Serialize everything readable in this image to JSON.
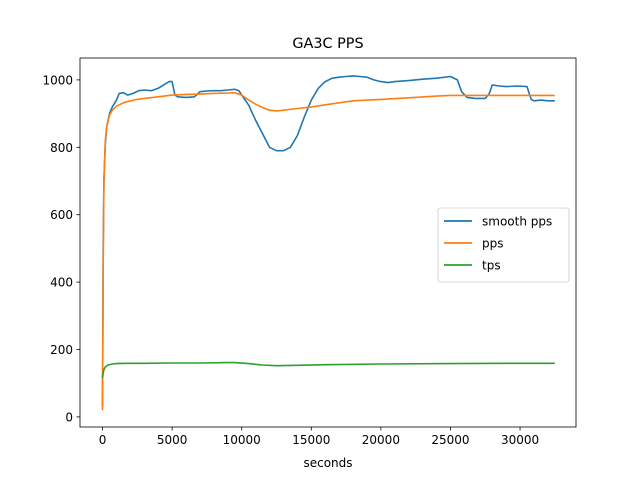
{
  "chart_data": {
    "type": "line",
    "title": "GA3C PPS",
    "xlabel": "seconds",
    "ylabel": "",
    "xlim": [
      -1620,
      34020
    ],
    "ylim": [
      -30,
      1065
    ],
    "xticks": [
      0,
      5000,
      10000,
      15000,
      20000,
      25000,
      30000
    ],
    "yticks": [
      0,
      200,
      400,
      600,
      800,
      1000
    ],
    "grid": false,
    "legend_position": "center-right",
    "series": [
      {
        "name": "smooth pps",
        "color": "#1f77b4",
        "x": [
          0,
          50,
          100,
          200,
          300,
          500,
          700,
          1000,
          1200,
          1500,
          1800,
          2200,
          2600,
          3000,
          3500,
          4000,
          4500,
          4800,
          5000,
          5200,
          5400,
          6000,
          6600,
          7000,
          7500,
          8000,
          8500,
          9000,
          9500,
          9800,
          10000,
          10500,
          11000,
          11500,
          12000,
          12500,
          13000,
          13500,
          14000,
          14500,
          15000,
          15500,
          16000,
          16500,
          17000,
          17500,
          18000,
          18500,
          19000,
          19500,
          20000,
          20500,
          21000,
          22000,
          23000,
          24000,
          25000,
          25500,
          25800,
          26200,
          26800,
          27500,
          27800,
          28000,
          28500,
          29000,
          29800,
          30500,
          30800,
          31000,
          31500,
          32000,
          32500
        ],
        "y": [
          30,
          500,
          700,
          810,
          860,
          900,
          920,
          940,
          960,
          962,
          955,
          960,
          968,
          970,
          968,
          975,
          988,
          995,
          995,
          955,
          950,
          948,
          950,
          965,
          967,
          968,
          968,
          970,
          972,
          968,
          955,
          925,
          880,
          840,
          800,
          790,
          790,
          800,
          835,
          890,
          940,
          975,
          995,
          1005,
          1008,
          1010,
          1012,
          1010,
          1008,
          1000,
          995,
          992,
          995,
          998,
          1002,
          1005,
          1010,
          1000,
          965,
          948,
          945,
          945,
          960,
          985,
          982,
          980,
          982,
          980,
          942,
          938,
          940,
          938,
          938
        ]
      },
      {
        "name": "pps",
        "color": "#ff7f0e",
        "x": [
          0,
          50,
          100,
          200,
          300,
          500,
          700,
          1000,
          1500,
          2000,
          2500,
          3000,
          4000,
          5000,
          6000,
          7000,
          8000,
          9000,
          9500,
          10000,
          10500,
          11000,
          11500,
          12000,
          12500,
          13000,
          14000,
          15000,
          16000,
          17000,
          18000,
          20000,
          22000,
          24000,
          25000,
          26000,
          27000,
          28000,
          30000,
          32500
        ],
        "y": [
          20,
          450,
          700,
          820,
          860,
          895,
          910,
          922,
          932,
          938,
          942,
          945,
          950,
          955,
          957,
          958,
          960,
          961,
          962,
          955,
          940,
          928,
          918,
          910,
          908,
          910,
          915,
          920,
          926,
          932,
          938,
          942,
          947,
          952,
          954,
          954,
          954,
          954,
          954,
          954
        ]
      },
      {
        "name": "tps",
        "color": "#2ca02c",
        "x": [
          0,
          50,
          100,
          200,
          400,
          700,
          1000,
          2000,
          3000,
          5000,
          7000,
          9000,
          9500,
          10500,
          11500,
          12500,
          14000,
          16000,
          20000,
          25000,
          30000,
          32500
        ],
        "y": [
          115,
          130,
          140,
          148,
          154,
          157,
          158,
          159,
          159,
          160,
          160,
          161,
          161,
          158,
          154,
          152,
          153,
          155,
          157,
          158,
          159,
          159
        ]
      }
    ]
  }
}
